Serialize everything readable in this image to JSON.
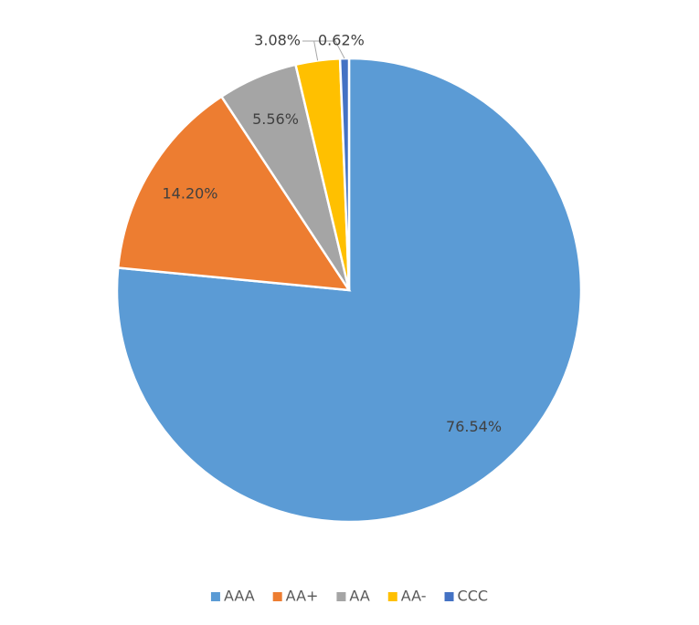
{
  "chart_data": {
    "type": "pie",
    "categories": [
      "AAA",
      "AA+",
      "AA",
      "AA-",
      "CCC"
    ],
    "values": [
      76.54,
      14.2,
      5.56,
      3.08,
      0.62
    ],
    "value_labels": [
      "76.54%",
      "14.20%",
      "5.56%",
      "3.08%",
      "0.62%"
    ],
    "colors": [
      "#5b9bd5",
      "#ed7d31",
      "#a5a5a5",
      "#ffc000",
      "#4472c4"
    ],
    "legend": "bottom"
  }
}
